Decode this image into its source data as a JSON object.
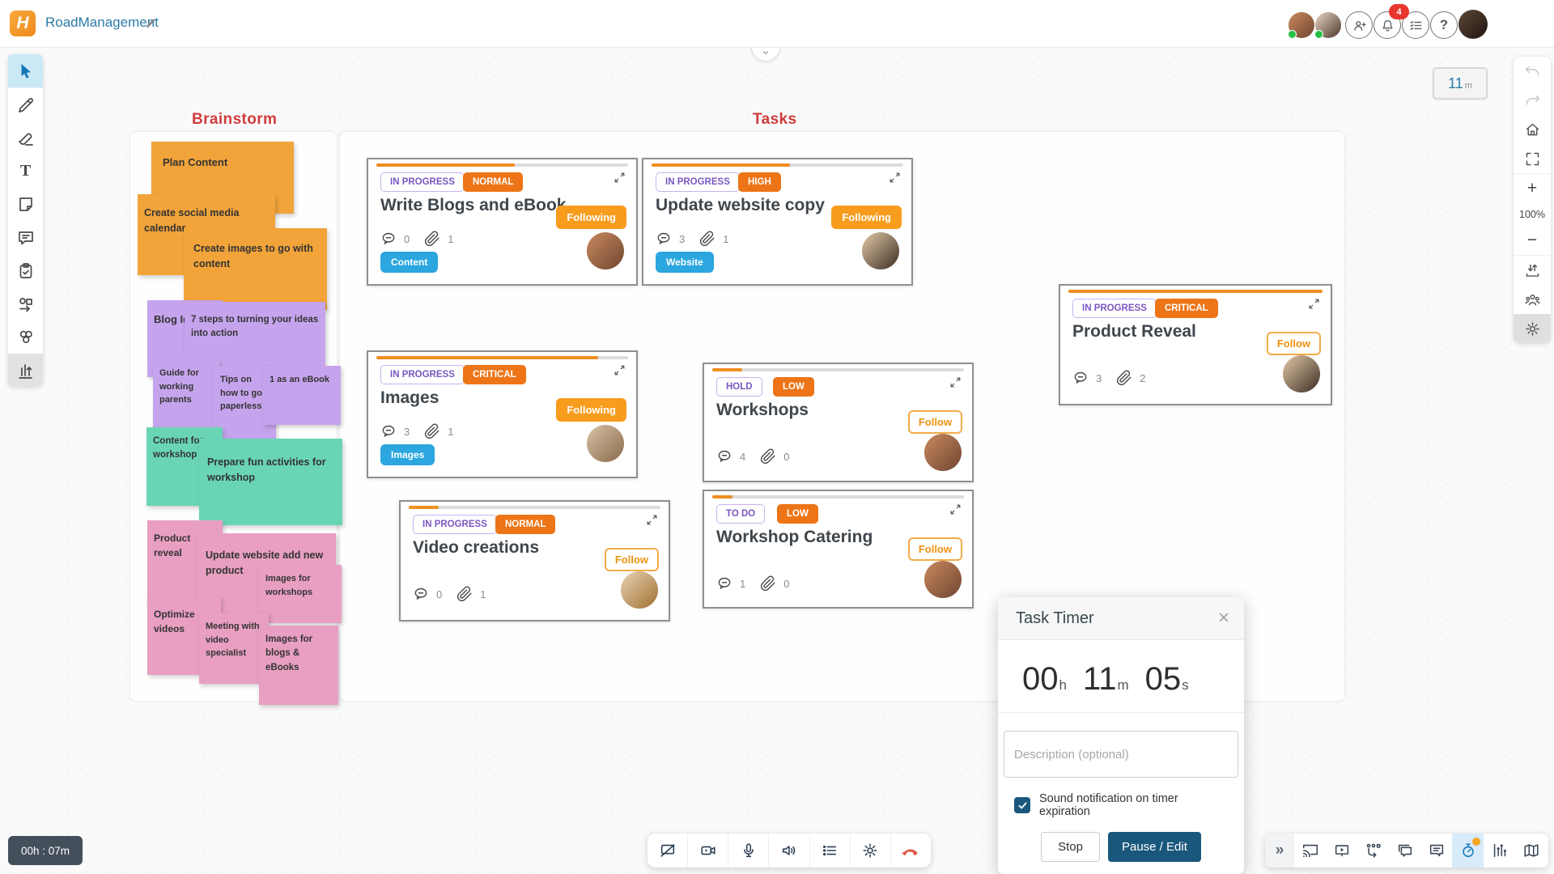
{
  "app": {
    "name": "RoadManagement",
    "logo_letter": "H"
  },
  "topbar": {
    "notifications_badge": "4",
    "icons": [
      "invite-user",
      "notifications",
      "checklist",
      "help"
    ],
    "help_glyph": "?",
    "online_collaborators": 2
  },
  "session_badge": {
    "value": "11",
    "unit": "m"
  },
  "board": {
    "sections": [
      {
        "title": "Brainstorm"
      },
      {
        "title": "Tasks"
      }
    ]
  },
  "stickies": [
    {
      "text": "Plan Content",
      "color": "orange"
    },
    {
      "text": "Create social media calendar",
      "color": "orange"
    },
    {
      "text": "Create images to go with content",
      "color": "orange"
    },
    {
      "text": "Blog Ideas",
      "color": "purple"
    },
    {
      "text": "7 steps to turning your ideas into action",
      "color": "purple"
    },
    {
      "text": "Guide for working parents",
      "color": "purple"
    },
    {
      "text": "Tips on how to go paperless",
      "color": "purple"
    },
    {
      "text": "1 as an eBook",
      "color": "purple"
    },
    {
      "text": "Content for workshop",
      "color": "teal"
    },
    {
      "text": "Prepare fun activities for workshop",
      "color": "teal"
    },
    {
      "text": "Product reveal",
      "color": "pink"
    },
    {
      "text": "Update website add new product",
      "color": "pink"
    },
    {
      "text": "Images for workshops",
      "color": "pink"
    },
    {
      "text": "Optimize videos",
      "color": "pink"
    },
    {
      "text": "Meeting with video specialist",
      "color": "pink"
    },
    {
      "text": "Images for blogs & eBooks",
      "color": "pink"
    }
  ],
  "cards": [
    {
      "status": "IN PROGRESS",
      "priority": "NORMAL",
      "title": "Write Blogs and eBook",
      "follow": "Following",
      "comments": "0",
      "attachments": "1",
      "tag": "Content",
      "progress": "55%"
    },
    {
      "status": "IN PROGRESS",
      "priority": "HIGH",
      "title": "Update website copy",
      "follow": "Following",
      "comments": "3",
      "attachments": "1",
      "tag": "Website",
      "progress": "55%"
    },
    {
      "status": "IN PROGRESS",
      "priority": "CRITICAL",
      "title": "Images",
      "follow": "Following",
      "comments": "3",
      "attachments": "1",
      "tag": "Images",
      "progress": "88%"
    },
    {
      "status": "HOLD",
      "priority": "LOW",
      "title": "Workshops",
      "follow": "Follow",
      "comments": "4",
      "attachments": "0",
      "progress": "12%"
    },
    {
      "status": "TO DO",
      "priority": "LOW",
      "title": "Workshop Catering",
      "follow": "Follow",
      "comments": "1",
      "attachments": "0",
      "progress": "8%"
    },
    {
      "status": "IN PROGRESS",
      "priority": "NORMAL",
      "title": "Video creations",
      "follow": "Follow",
      "comments": "0",
      "attachments": "1",
      "progress": "12%"
    },
    {
      "status": "IN PROGRESS",
      "priority": "CRITICAL",
      "title": "Product Reveal",
      "follow": "Follow",
      "comments": "3",
      "attachments": "2",
      "progress": "100%"
    }
  ],
  "toolbar_left": {
    "tools": [
      "select",
      "pen",
      "eraser",
      "text",
      "sticky-note",
      "comment",
      "tasks",
      "shapes",
      "reactions",
      "charts"
    ],
    "active_tool": "select",
    "text_tool_glyph": "T"
  },
  "toolbar_right": {
    "items": [
      "undo",
      "redo",
      "home",
      "fit-screen",
      "zoom-in",
      "zoom-level",
      "zoom-out",
      "export",
      "collaborators",
      "settings"
    ],
    "zoom_in": "+",
    "zoom_out": "−",
    "zoom_level": "100%",
    "active": "settings"
  },
  "task_timer": {
    "title": "Task Timer",
    "time": [
      {
        "value": "00",
        "unit": "h"
      },
      {
        "value": "11",
        "unit": "m"
      },
      {
        "value": "05",
        "unit": "s"
      }
    ],
    "description_placeholder": "Description (optional)",
    "sound_label": "Sound notification on timer expiration",
    "sound_checked": true,
    "stop_label": "Stop",
    "pause_label": "Pause / Edit"
  },
  "call_controls": {
    "items": [
      "screenshare-off",
      "camera",
      "microphone",
      "speaker",
      "queue",
      "settings",
      "end-call"
    ],
    "duration": "00h : 07m"
  },
  "bottom_right_bar": {
    "collapse_glyph": "»",
    "items": [
      "cast",
      "presentation",
      "workflow",
      "comments",
      "chat",
      "task-timer",
      "polls",
      "map"
    ],
    "active": "task-timer"
  },
  "colors": {
    "accent_orange": "#ED7517",
    "follow_orange": "#F79C1D",
    "tag_blue": "#2BA6DF",
    "status_purple": "#7A57C1",
    "timer_blue": "#19577C",
    "section_red": "#D03C3C",
    "sticky_orange": "#F2A43A",
    "sticky_purple": "#C6A4ED",
    "sticky_teal": "#69D5B5",
    "sticky_pink": "#E89FC1"
  }
}
